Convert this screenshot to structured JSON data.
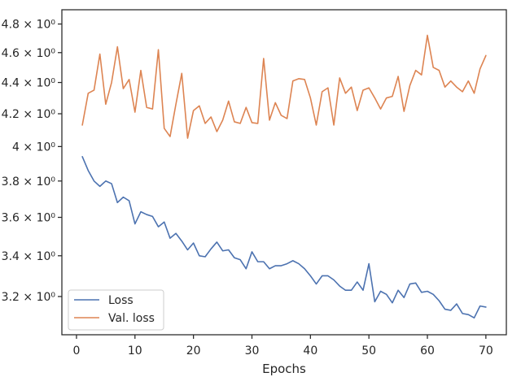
{
  "chart_data": {
    "type": "line",
    "title": "",
    "xlabel": "Epochs",
    "ylabel": "",
    "yscale": "log",
    "grid": false,
    "legend_position": "lower-left",
    "xlim": [
      -2.5,
      73.5
    ],
    "ylim": [
      3.023,
      4.903
    ],
    "x_ticks": [
      0,
      10,
      20,
      30,
      40,
      50,
      60,
      70
    ],
    "x_tick_labels": [
      "0",
      "10",
      "20",
      "30",
      "40",
      "50",
      "60",
      "70"
    ],
    "y_ticks": [
      3.2,
      3.4,
      3.6,
      3.8,
      4.0,
      4.2,
      4.4,
      4.6,
      4.8
    ],
    "y_tick_labels": [
      "3.2 × 10⁰",
      "3.4 × 10⁰",
      "3.6 × 10⁰",
      "3.8 × 10⁰",
      "4 × 10⁰",
      "4.2 × 10⁰",
      "4.4 × 10⁰",
      "4.6 × 10⁰",
      "4.8 × 10⁰"
    ],
    "x": [
      1,
      2,
      3,
      4,
      5,
      6,
      7,
      8,
      9,
      10,
      11,
      12,
      13,
      14,
      15,
      16,
      17,
      18,
      19,
      20,
      21,
      22,
      23,
      24,
      25,
      26,
      27,
      28,
      29,
      30,
      31,
      32,
      33,
      34,
      35,
      36,
      37,
      38,
      39,
      40,
      41,
      42,
      43,
      44,
      45,
      46,
      47,
      48,
      49,
      50,
      51,
      52,
      53,
      54,
      55,
      56,
      57,
      58,
      59,
      60,
      61,
      62,
      63,
      64,
      65,
      66,
      67,
      68,
      69,
      70
    ],
    "series": [
      {
        "name": "Loss",
        "color": "#4c72b0",
        "values": [
          3.94,
          3.86,
          3.8,
          3.77,
          3.8,
          3.785,
          3.68,
          3.71,
          3.69,
          3.565,
          3.63,
          3.615,
          3.605,
          3.55,
          3.575,
          3.49,
          3.515,
          3.475,
          3.43,
          3.465,
          3.4,
          3.395,
          3.435,
          3.47,
          3.425,
          3.43,
          3.39,
          3.38,
          3.335,
          3.42,
          3.37,
          3.37,
          3.335,
          3.35,
          3.35,
          3.36,
          3.375,
          3.36,
          3.335,
          3.3,
          3.26,
          3.3,
          3.3,
          3.28,
          3.25,
          3.23,
          3.23,
          3.27,
          3.23,
          3.36,
          3.175,
          3.225,
          3.21,
          3.17,
          3.23,
          3.195,
          3.26,
          3.265,
          3.22,
          3.225,
          3.21,
          3.18,
          3.14,
          3.135,
          3.165,
          3.12,
          3.115,
          3.1,
          3.155,
          3.15
        ]
      },
      {
        "name": "Val. loss",
        "color": "#dd8452",
        "values": [
          4.13,
          4.33,
          4.35,
          4.59,
          4.26,
          4.4,
          4.64,
          4.36,
          4.42,
          4.21,
          4.48,
          4.24,
          4.23,
          4.62,
          4.11,
          4.06,
          4.26,
          4.46,
          4.05,
          4.22,
          4.25,
          4.14,
          4.18,
          4.09,
          4.16,
          4.28,
          4.15,
          4.14,
          4.24,
          4.145,
          4.14,
          4.56,
          4.16,
          4.27,
          4.19,
          4.17,
          4.41,
          4.425,
          4.42,
          4.3,
          4.13,
          4.34,
          4.365,
          4.13,
          4.43,
          4.33,
          4.37,
          4.22,
          4.35,
          4.365,
          4.3,
          4.23,
          4.3,
          4.31,
          4.44,
          4.215,
          4.38,
          4.48,
          4.45,
          4.72,
          4.5,
          4.48,
          4.37,
          4.41,
          4.37,
          4.34,
          4.41,
          4.33,
          4.49,
          4.58
        ]
      }
    ]
  }
}
